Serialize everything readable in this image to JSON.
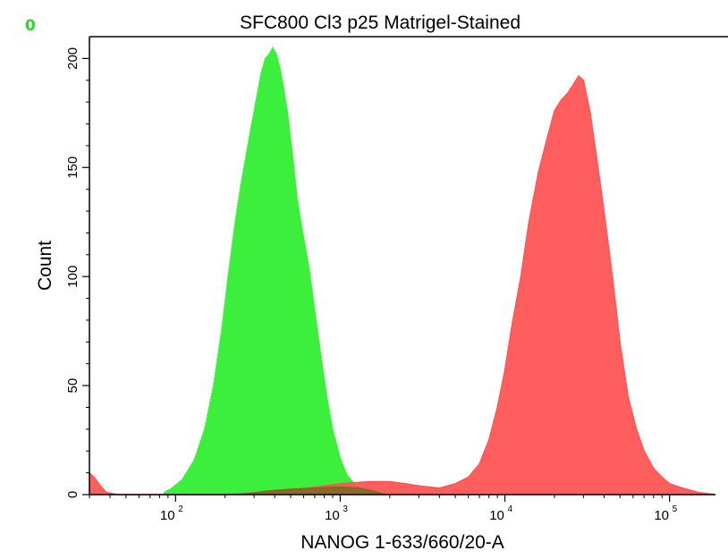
{
  "panel_letter": "0",
  "chart_data": {
    "type": "area",
    "title": "SFC800 Cl3 p25 Matrigel-Stained",
    "xlabel": "NANOG 1-633/660/20-A",
    "ylabel": "Count",
    "x_scale": "log",
    "xlim": [
      30,
      190000
    ],
    "ylim": [
      0,
      210
    ],
    "x_ticks": [
      {
        "value": 100,
        "base": "10",
        "exp": "2"
      },
      {
        "value": 1000,
        "base": "10",
        "exp": "3"
      },
      {
        "value": 10000,
        "base": "10",
        "exp": "4"
      },
      {
        "value": 100000,
        "base": "10",
        "exp": "5"
      }
    ],
    "y_ticks": [
      0,
      50,
      100,
      150,
      200
    ],
    "grid": false,
    "legend": "none",
    "series": [
      {
        "color": "#33ee33",
        "x": [
          85,
          95,
          110,
          130,
          150,
          170,
          190,
          210,
          230,
          250,
          270,
          290,
          310,
          330,
          350,
          370,
          390,
          410,
          430,
          450,
          480,
          510,
          550,
          600,
          650,
          700,
          760,
          830,
          900,
          1000,
          1100,
          1250,
          1400,
          1600
        ],
        "values": [
          1,
          3,
          7,
          16,
          30,
          50,
          75,
          102,
          125,
          143,
          157,
          170,
          182,
          193,
          200,
          202,
          205,
          202,
          196,
          188,
          175,
          158,
          135,
          118,
          103,
          85,
          65,
          45,
          30,
          17,
          9,
          4,
          2,
          0
        ]
      },
      {
        "color": "#ff5555",
        "x": [
          30,
          32,
          35,
          38,
          45,
          60,
          100,
          200,
          500,
          800,
          1000,
          1500,
          2000,
          2500,
          3000,
          4000,
          5000,
          6000,
          7000,
          8000,
          9000,
          10000,
          11000,
          12500,
          14000,
          16000,
          18000,
          20000,
          22000,
          24000,
          26000,
          28000,
          30000,
          33000,
          36000,
          40000,
          45000,
          50000,
          56000,
          63000,
          70000,
          80000,
          90000,
          100000,
          120000,
          150000,
          190000
        ],
        "values": [
          10,
          8,
          4,
          1,
          0,
          0,
          0,
          0,
          2,
          4,
          5,
          6,
          6,
          5,
          4,
          3,
          5,
          8,
          14,
          25,
          40,
          57,
          77,
          100,
          125,
          148,
          163,
          176,
          181,
          184,
          188,
          192,
          190,
          175,
          155,
          130,
          100,
          70,
          45,
          30,
          20,
          12,
          8,
          5,
          3,
          1,
          0
        ]
      },
      {
        "color": "#7a6a22",
        "x": [
          250,
          350,
          500,
          700,
          1000,
          1300,
          1600,
          1900
        ],
        "values": [
          0,
          1.5,
          2.5,
          3,
          3.5,
          3,
          1.5,
          0
        ]
      }
    ]
  }
}
